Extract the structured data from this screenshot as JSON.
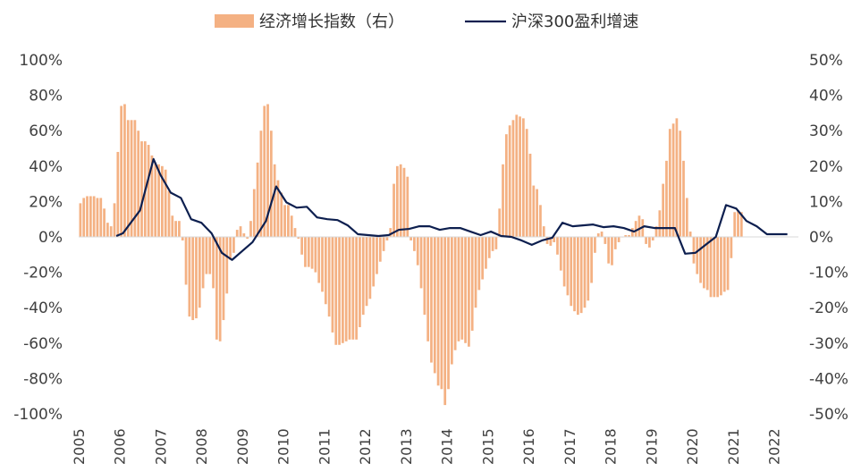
{
  "chart_data": {
    "type": "bar+line",
    "title": "",
    "legend": {
      "position": "top-center"
    },
    "grid": false,
    "x_axis": {
      "labels": [
        "2005",
        "2006",
        "2007",
        "2008",
        "2009",
        "2010",
        "2011",
        "2012",
        "2013",
        "2014",
        "2015",
        "2016",
        "2017",
        "2018",
        "2019",
        "2020",
        "2021",
        "2022"
      ]
    },
    "y_left": {
      "range": [
        -100,
        100
      ],
      "ticks": [
        100,
        80,
        60,
        40,
        20,
        0,
        -20,
        -40,
        -60,
        -80,
        -100
      ],
      "tick_labels": [
        "100%",
        "80%",
        "60%",
        "40%",
        "20%",
        "0%",
        "-20%",
        "-40%",
        "-60%",
        "-80%",
        "-100%"
      ]
    },
    "y_right": {
      "range": [
        -50,
        50
      ],
      "ticks": [
        50,
        40,
        30,
        20,
        10,
        0,
        -10,
        -20,
        -30,
        -40,
        -50
      ],
      "tick_labels": [
        "50%",
        "40%",
        "30%",
        "20%",
        "10%",
        "0%",
        "-10%",
        "-20%",
        "-30%",
        "-40%",
        "-50%"
      ]
    },
    "bars": {
      "name": "经济增长指数（右）",
      "axis": "right",
      "color": "#F4B183",
      "x_start": 2005.0,
      "step_years": 0.08333,
      "values": [
        9.5,
        11,
        11.5,
        11.5,
        11.5,
        11,
        11,
        8,
        4,
        3,
        9.5,
        24,
        37,
        37.5,
        33,
        33,
        33,
        30,
        27,
        27,
        26,
        23,
        21,
        20.5,
        20,
        19,
        13,
        6,
        4.5,
        4.5,
        -1,
        -13.5,
        -22.5,
        -23.5,
        -23,
        -20,
        -14.5,
        -10.5,
        -10.5,
        -14.5,
        -29,
        -29.5,
        -23.5,
        -16,
        -6.5,
        -4.5,
        2,
        3,
        1,
        -0.5,
        4.5,
        13.5,
        21,
        30,
        37,
        37.5,
        30,
        20.5,
        16,
        12.5,
        9,
        9,
        6,
        2.5,
        -0.5,
        -5,
        -8.5,
        -8.5,
        -9,
        -10,
        -13,
        -15.5,
        -19,
        -22.5,
        -27,
        -30.5,
        -30.5,
        -30,
        -29.5,
        -29,
        -29,
        -29,
        -25.5,
        -22,
        -19.5,
        -17.5,
        -14,
        -10.5,
        -7,
        -4,
        -1,
        2.5,
        15,
        20,
        20.5,
        19.5,
        17,
        -1,
        -4,
        -8,
        -14.5,
        -22,
        -29.5,
        -35.5,
        -38.5,
        -42,
        -43,
        -47.5,
        -43,
        -36,
        -32,
        -29.5,
        -29,
        -30,
        -31,
        -26.5,
        -20,
        -15,
        -12,
        -9,
        -6,
        -4,
        -3.5,
        8,
        20.5,
        29,
        31.5,
        33,
        34.5,
        34,
        33.5,
        30.5,
        23.5,
        14.5,
        13.5,
        9,
        3,
        -2,
        -2.5,
        -1.5,
        -5,
        -9.5,
        -14,
        -16.5,
        -19.5,
        -21,
        -22,
        -21.5,
        -20,
        -18,
        -13,
        -4.5,
        1,
        1.5,
        -2,
        -7.5,
        -8,
        -3.5,
        -1.5,
        0,
        0.5,
        0.5,
        2.5,
        4.5,
        6,
        5,
        -2,
        -3,
        -1,
        3,
        7.5,
        15,
        21.5,
        30.5,
        32,
        33.5,
        30,
        21.5,
        11,
        1.5,
        -7.5,
        -10.5,
        -13,
        -14.5,
        -15,
        -17,
        -17,
        -17,
        -16.5,
        -15.5,
        -15,
        -6,
        7,
        7.5,
        7
      ]
    },
    "line": {
      "name": "沪深300盈利增速",
      "axis": "left",
      "color": "#0D1F4F",
      "points": [
        [
          2005.92,
          0.5
        ],
        [
          2006.08,
          2
        ],
        [
          2006.5,
          15
        ],
        [
          2006.83,
          44
        ],
        [
          2007.0,
          35
        ],
        [
          2007.25,
          25
        ],
        [
          2007.5,
          22
        ],
        [
          2007.75,
          10
        ],
        [
          2008.0,
          8
        ],
        [
          2008.25,
          2
        ],
        [
          2008.5,
          -9
        ],
        [
          2008.75,
          -13
        ],
        [
          2009.0,
          -8
        ],
        [
          2009.25,
          -3
        ],
        [
          2009.58,
          9
        ],
        [
          2009.83,
          28.5
        ],
        [
          2010.08,
          19.5
        ],
        [
          2010.33,
          16.5
        ],
        [
          2010.58,
          17
        ],
        [
          2010.83,
          11
        ],
        [
          2011.08,
          10
        ],
        [
          2011.33,
          9.5
        ],
        [
          2011.58,
          6.5
        ],
        [
          2011.83,
          1.5
        ],
        [
          2012.08,
          1
        ],
        [
          2012.33,
          0.5
        ],
        [
          2012.58,
          1
        ],
        [
          2012.83,
          4
        ],
        [
          2013.08,
          4.5
        ],
        [
          2013.33,
          6
        ],
        [
          2013.58,
          6
        ],
        [
          2013.83,
          4
        ],
        [
          2014.08,
          5
        ],
        [
          2014.33,
          5
        ],
        [
          2014.58,
          3
        ],
        [
          2014.83,
          1
        ],
        [
          2015.08,
          3
        ],
        [
          2015.33,
          0.5
        ],
        [
          2015.58,
          0
        ],
        [
          2015.83,
          -2
        ],
        [
          2016.08,
          -4.5
        ],
        [
          2016.33,
          -2
        ],
        [
          2016.58,
          -0.5
        ],
        [
          2016.83,
          8
        ],
        [
          2017.08,
          6
        ],
        [
          2017.33,
          6.5
        ],
        [
          2017.58,
          7
        ],
        [
          2017.83,
          5.5
        ],
        [
          2018.08,
          6
        ],
        [
          2018.33,
          5
        ],
        [
          2018.58,
          3
        ],
        [
          2018.83,
          6
        ],
        [
          2019.08,
          5
        ],
        [
          2019.33,
          5
        ],
        [
          2019.58,
          5
        ],
        [
          2019.83,
          -9.5
        ],
        [
          2020.08,
          -9
        ],
        [
          2020.33,
          -4.5
        ],
        [
          2020.58,
          0
        ],
        [
          2020.83,
          18
        ],
        [
          2021.08,
          16
        ],
        [
          2021.33,
          9
        ],
        [
          2021.58,
          6
        ],
        [
          2021.83,
          1.5
        ],
        [
          2022.08,
          1.5
        ],
        [
          2022.33,
          1.5
        ]
      ]
    }
  }
}
